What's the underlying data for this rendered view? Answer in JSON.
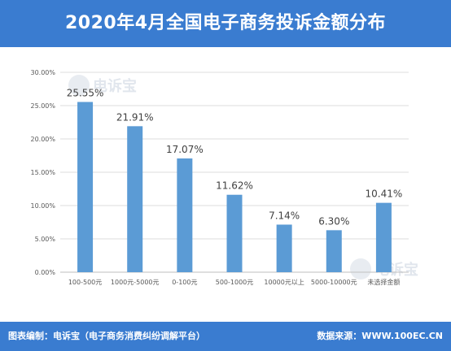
{
  "header": {
    "title": "2020年4月全国电子商务投诉金额分布"
  },
  "watermark": {
    "brand": "电诉宝"
  },
  "footer": {
    "credit": "图表编制：电诉宝（电子商务消费纠纷调解平台）",
    "source": "数据来源：WWW.100EC.CN"
  },
  "colors": {
    "header": "#3a7cd0",
    "bar": "#5b9bd5"
  },
  "chart_data": {
    "type": "bar",
    "title": "",
    "xlabel": "",
    "ylabel": "",
    "categories": [
      "100-500元",
      "1000元-5000元",
      "0-100元",
      "500-1000元",
      "10000元以上",
      "5000-10000元",
      "未选择金额"
    ],
    "values": [
      25.55,
      21.91,
      17.07,
      11.62,
      7.14,
      6.3,
      10.41
    ],
    "value_labels": [
      "25.55%",
      "21.91%",
      "17.07%",
      "11.62%",
      "7.14%",
      "6.30%",
      "10.41%"
    ],
    "ylim": [
      0,
      30
    ],
    "yticks": [
      0,
      5,
      10,
      15,
      20,
      25,
      30
    ],
    "ytick_labels": [
      "0.00%",
      "5.00%",
      "10.00%",
      "15.00%",
      "20.00%",
      "25.00%",
      "30.00%"
    ],
    "grid": true,
    "legend": "none"
  }
}
